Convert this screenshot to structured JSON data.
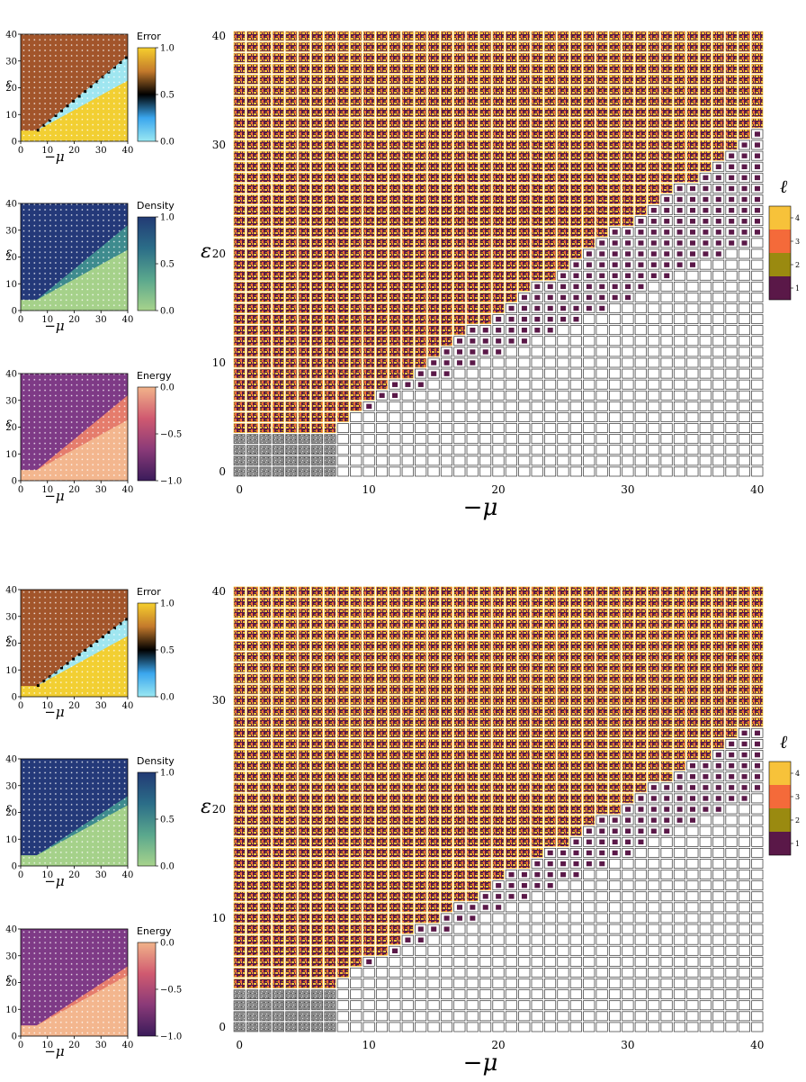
{
  "colors": {
    "error_colormap": [
      "#9ae8f2",
      "#3aa6ee",
      "#000000",
      "#c47a2c",
      "#f6cf2d"
    ],
    "density_colormap": [
      "#a7d38c",
      "#5aa78d",
      "#2b6d88",
      "#223a74"
    ],
    "energy_colormap": [
      "#3a1b5a",
      "#8a3a78",
      "#d05a70",
      "#f1b38a"
    ],
    "ell_levels": [
      "#5a1848",
      "#9a8a10",
      "#f46a3a",
      "#f7c23a"
    ],
    "error_regions": {
      "top": "#a2552b",
      "bottom": "#f2cf32",
      "band": "#9fe6f0"
    },
    "density_regions": {
      "top": "#243979",
      "middle": "#3e8b8e",
      "bottom": "#a5d18a"
    },
    "energy_regions": {
      "top": "#7e3a86",
      "middle": "#e57c6c",
      "bottom": "#f3b68e"
    },
    "grid_cell_dark": "#5a1848",
    "grid_cell_gray": "#7a7a7a"
  },
  "panels": [
    {
      "small_charts": [
        {
          "chart_data": {
            "type": "heatmap",
            "title": "Error",
            "xlabel": "−μ",
            "ylabel": "ε",
            "xlim": [
              0,
              40
            ],
            "ylim": [
              0,
              40
            ],
            "x_ticks": [
              "0",
              "10",
              "20",
              "30",
              "40"
            ],
            "y_ticks": [
              "0",
              "10",
              "20",
              "30",
              "40"
            ],
            "colorbar_ticks": [
              "0.0",
              "0.5",
              "1.0"
            ],
            "colorbar_range": [
              0.0,
              1.0
            ],
            "boundary_upper_slope": 0.82,
            "boundary_lower_slope": 0.55,
            "region_values": {
              "top": 0.85,
              "band": 0.0,
              "bottom": 1.0
            }
          }
        },
        {
          "chart_data": {
            "type": "heatmap",
            "title": "Density",
            "xlabel": "−μ",
            "ylabel": "ε",
            "xlim": [
              0,
              40
            ],
            "ylim": [
              0,
              40
            ],
            "x_ticks": [
              "0",
              "10",
              "20",
              "30",
              "40"
            ],
            "y_ticks": [
              "0",
              "10",
              "20",
              "30",
              "40"
            ],
            "colorbar_ticks": [
              "0.0",
              "0.5",
              "1.0"
            ],
            "colorbar_range": [
              0.0,
              1.0
            ],
            "boundary_upper_slope": 0.82,
            "boundary_lower_slope": 0.55,
            "region_values": {
              "top": 1.0,
              "middle": 0.5,
              "bottom": 0.0
            }
          }
        },
        {
          "chart_data": {
            "type": "heatmap",
            "title": "Energy",
            "xlabel": "−μ",
            "ylabel": "ε",
            "xlim": [
              0,
              40
            ],
            "ylim": [
              0,
              40
            ],
            "x_ticks": [
              "0",
              "10",
              "20",
              "30",
              "40"
            ],
            "y_ticks": [
              "0",
              "10",
              "20",
              "30",
              "40"
            ],
            "colorbar_ticks": [
              "−1.0",
              "−0.5",
              "0.0"
            ],
            "colorbar_range": [
              -1.0,
              0.0
            ],
            "boundary_upper_slope": 0.82,
            "boundary_lower_slope": 0.55,
            "region_values": {
              "top": -0.75,
              "middle": -0.4,
              "bottom": -0.1
            }
          }
        }
      ],
      "grid_chart": {
        "chart_data": {
          "type": "heatmap",
          "xlabel": "−μ",
          "ylabel": "ε",
          "xlim": [
            0,
            40
          ],
          "ylim": [
            0,
            40
          ],
          "x_ticks": [
            "0",
            "10",
            "20",
            "30",
            "40"
          ],
          "y_ticks": [
            "0",
            "10",
            "20",
            "30",
            "40"
          ],
          "legend_title": "ℓ",
          "legend_ticks": [
            "4",
            "3",
            "2",
            "1"
          ],
          "boundary_disordered_slope": 0.82,
          "boundary_empty_slope": 0.52,
          "textured_bottom_rows": 4
        }
      }
    },
    {
      "small_charts": [
        {
          "chart_data": {
            "type": "heatmap",
            "title": "Error",
            "xlabel": "−μ",
            "ylabel": "ε",
            "xlim": [
              0,
              40
            ],
            "ylim": [
              0,
              40
            ],
            "x_ticks": [
              "0",
              "10",
              "20",
              "30",
              "40"
            ],
            "y_ticks": [
              "0",
              "10",
              "20",
              "30",
              "40"
            ],
            "colorbar_ticks": [
              "0.0",
              "0.5",
              "1.0"
            ],
            "colorbar_range": [
              0.0,
              1.0
            ],
            "boundary_upper_slope": 0.75,
            "boundary_lower_slope": 0.55,
            "region_values": {
              "top": 0.85,
              "band": 0.0,
              "bottom": 1.0
            }
          }
        },
        {
          "chart_data": {
            "type": "heatmap",
            "title": "Density",
            "xlabel": "−μ",
            "ylabel": "ε",
            "xlim": [
              0,
              40
            ],
            "ylim": [
              0,
              40
            ],
            "x_ticks": [
              "0",
              "10",
              "20",
              "30",
              "40"
            ],
            "y_ticks": [
              "0",
              "10",
              "20",
              "30",
              "40"
            ],
            "colorbar_ticks": [
              "0.0",
              "0.5",
              "1.0"
            ],
            "colorbar_range": [
              0.0,
              1.0
            ],
            "boundary_upper_slope": 0.65,
            "boundary_lower_slope": 0.55,
            "region_values": {
              "top": 1.0,
              "middle": 0.5,
              "bottom": 0.0
            }
          }
        },
        {
          "chart_data": {
            "type": "heatmap",
            "title": "Energy",
            "xlabel": "−μ",
            "ylabel": "ε",
            "xlim": [
              0,
              40
            ],
            "ylim": [
              0,
              40
            ],
            "x_ticks": [
              "0",
              "10",
              "20",
              "30",
              "40"
            ],
            "y_ticks": [
              "0",
              "10",
              "20",
              "30",
              "40"
            ],
            "colorbar_ticks": [
              "−1.0",
              "−0.5",
              "0.0"
            ],
            "colorbar_range": [
              -1.0,
              0.0
            ],
            "boundary_upper_slope": 0.65,
            "boundary_lower_slope": 0.55,
            "region_values": {
              "top": -0.75,
              "middle": -0.4,
              "bottom": -0.1
            }
          }
        }
      ],
      "grid_chart": {
        "chart_data": {
          "type": "heatmap",
          "xlabel": "−μ",
          "ylabel": "ε",
          "xlim": [
            0,
            40
          ],
          "ylim": [
            0,
            40
          ],
          "x_ticks": [
            "0",
            "10",
            "20",
            "30",
            "40"
          ],
          "y_ticks": [
            "0",
            "10",
            "20",
            "30",
            "40"
          ],
          "legend_title": "ℓ",
          "legend_ticks": [
            "4",
            "3",
            "2",
            "1"
          ],
          "boundary_disordered_slope": 0.72,
          "boundary_empty_slope": 0.52,
          "textured_bottom_rows": 4
        }
      }
    }
  ]
}
